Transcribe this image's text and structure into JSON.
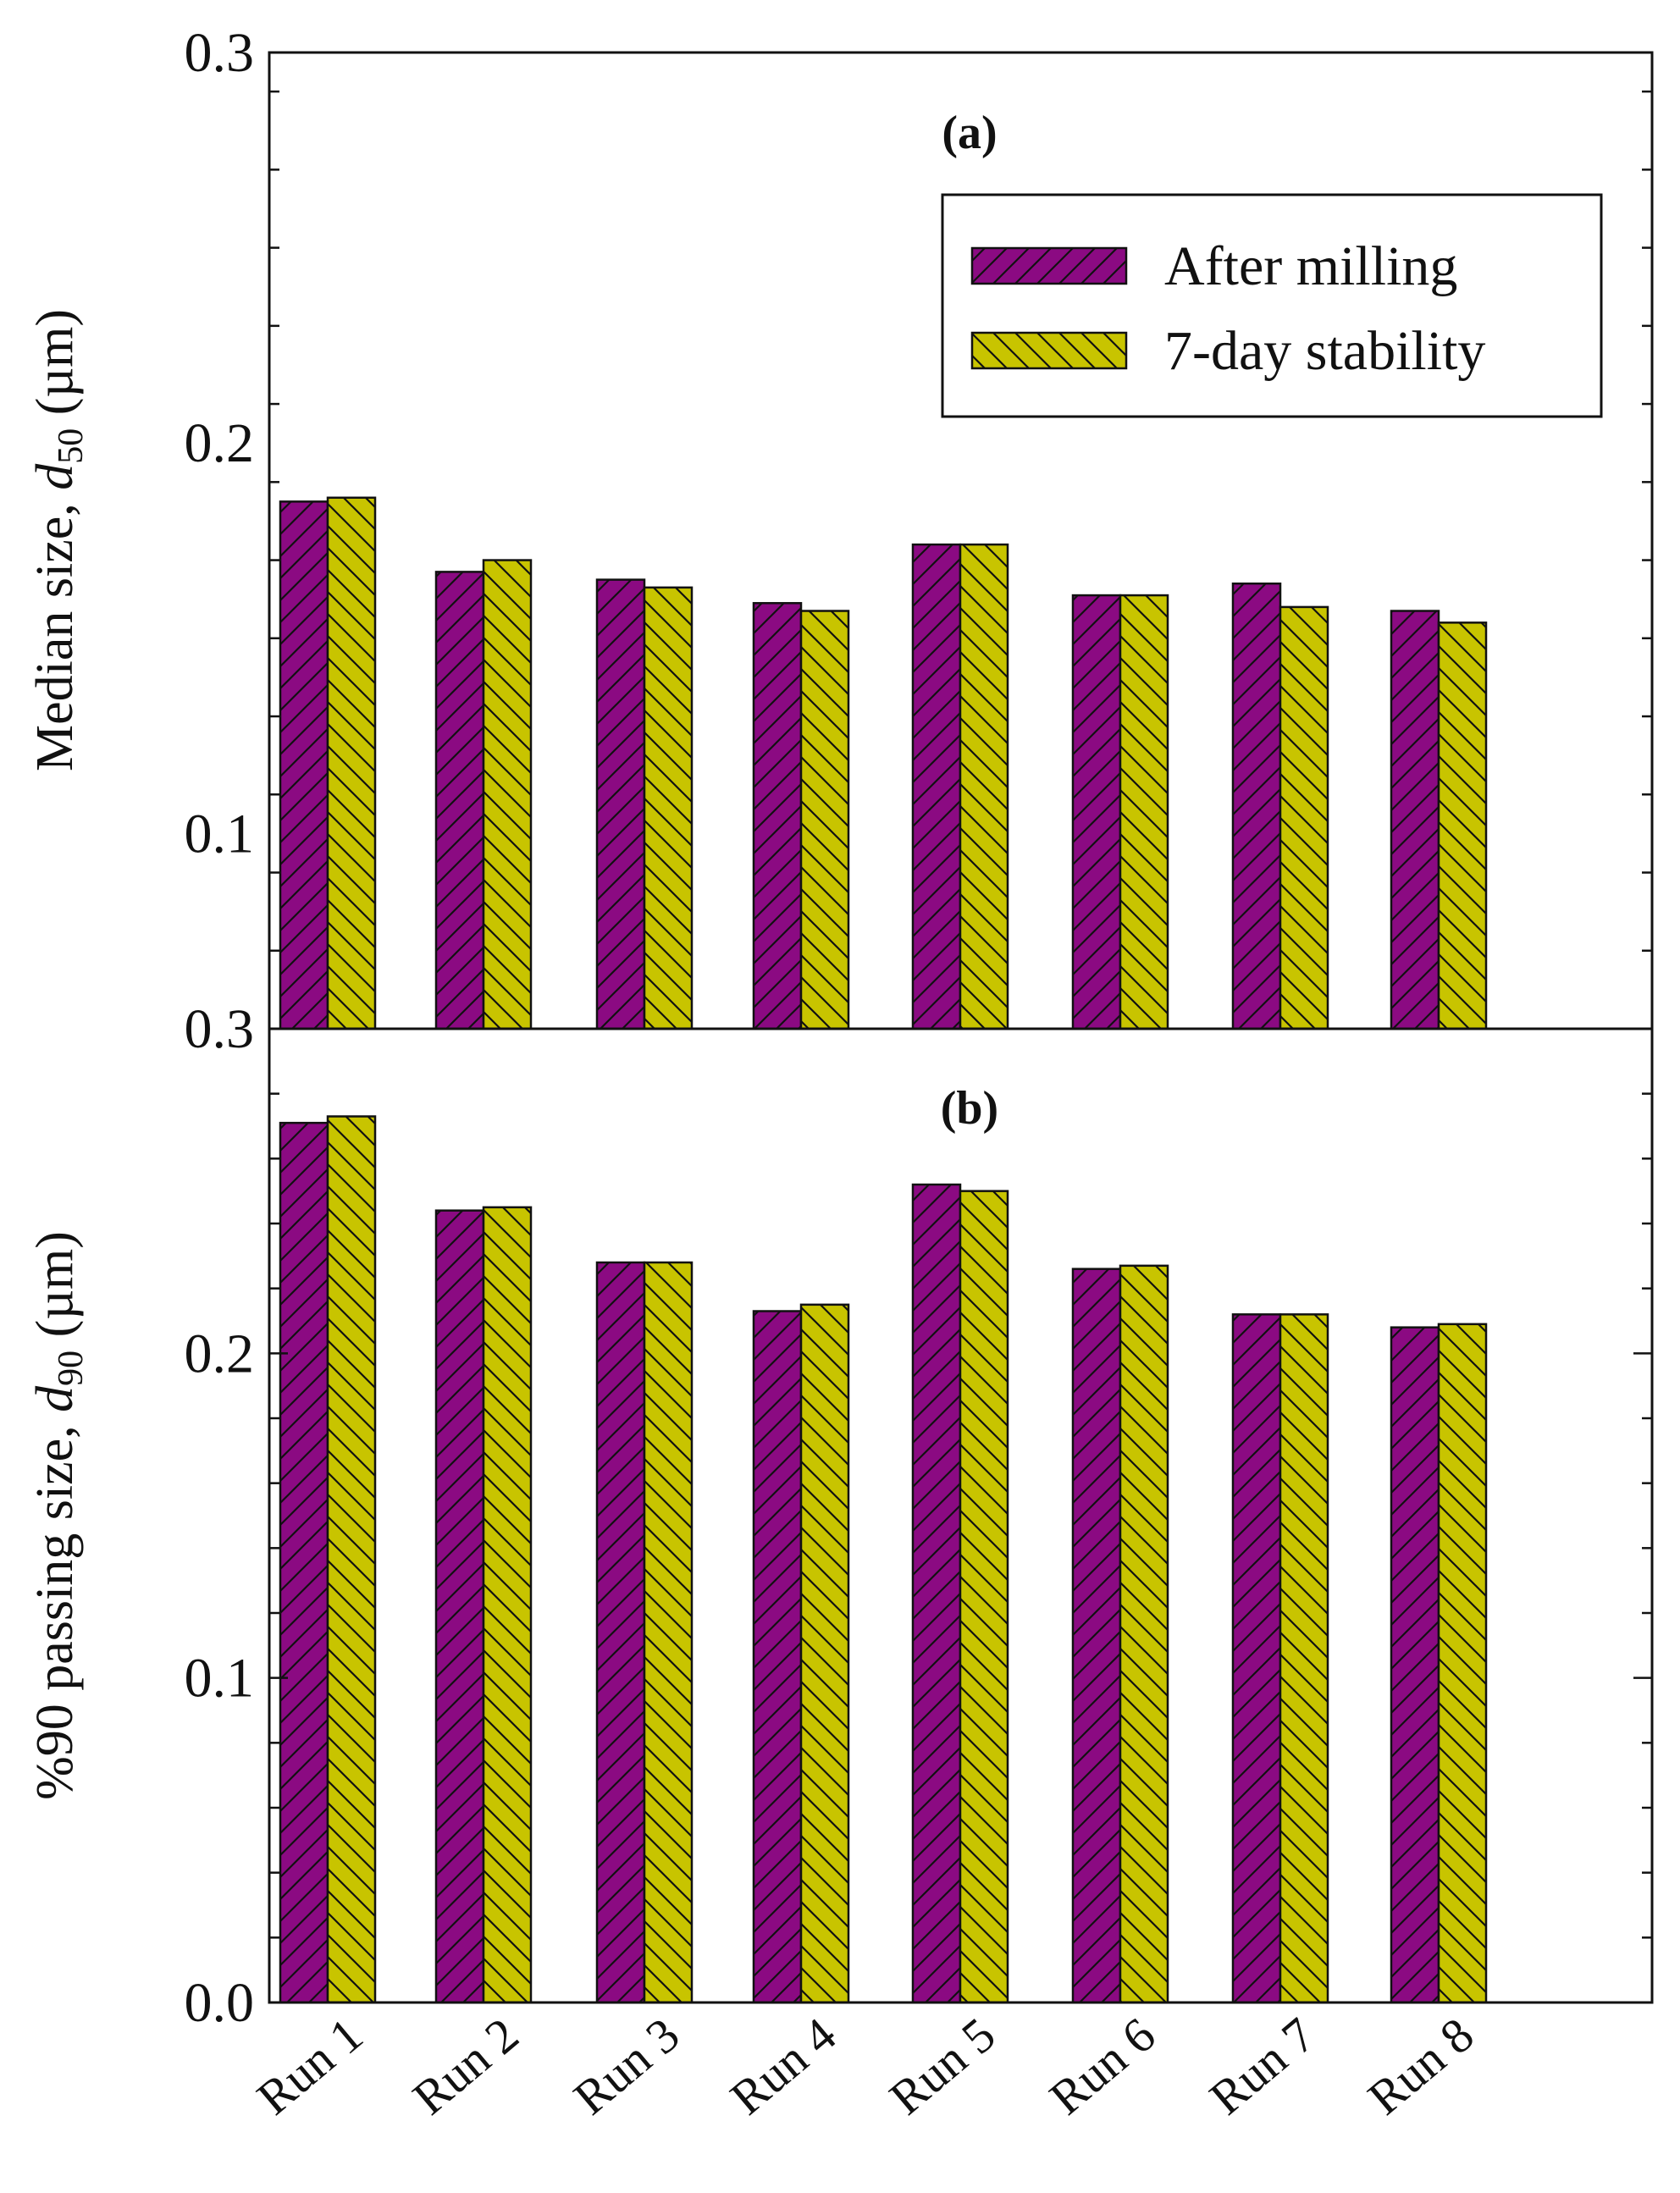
{
  "colors": {
    "after_milling": "#8b0a82",
    "seven_day": "#c8c400",
    "axis": "#111111"
  },
  "legend": {
    "after_milling": "After milling",
    "seven_day": "7-day stability"
  },
  "chart_data": [
    {
      "type": "bar",
      "panel_label": "(a)",
      "ylabel_main": "Median size, ",
      "ylabel_var": "d",
      "ylabel_sub": "50",
      "ylabel_unit": " (µm)",
      "ylim": [
        0.05,
        0.3
      ],
      "yticks": [
        0.1,
        0.2,
        0.3
      ],
      "ytick_labels": [
        "0.1",
        "0.2",
        "0.3"
      ],
      "categories": [
        "Run 1",
        "Run 2",
        "Run 3",
        "Run 4",
        "Run 5",
        "Run 6",
        "Run 7",
        "Run 8"
      ],
      "series": [
        {
          "name": "After milling",
          "values": [
            0.185,
            0.167,
            0.165,
            0.159,
            0.174,
            0.161,
            0.164,
            0.157
          ]
        },
        {
          "name": "7-day stability",
          "values": [
            0.186,
            0.17,
            0.163,
            0.157,
            0.174,
            0.161,
            0.158,
            0.154
          ]
        }
      ],
      "legend_position": "top-right"
    },
    {
      "type": "bar",
      "panel_label": "(b)",
      "ylabel_main": "%90 passing size, ",
      "ylabel_var": "d",
      "ylabel_sub": "90",
      "ylabel_unit": " (µm)",
      "ylim": [
        0.0,
        0.3
      ],
      "yticks": [
        0.0,
        0.1,
        0.2,
        0.3
      ],
      "ytick_labels": [
        "0.0",
        "0.1",
        "0.2",
        "0.3"
      ],
      "categories": [
        "Run 1",
        "Run 2",
        "Run 3",
        "Run 4",
        "Run 5",
        "Run 6",
        "Run 7",
        "Run 8"
      ],
      "series": [
        {
          "name": "After milling",
          "values": [
            0.271,
            0.244,
            0.228,
            0.213,
            0.252,
            0.226,
            0.212,
            0.208
          ]
        },
        {
          "name": "7-day stability",
          "values": [
            0.273,
            0.245,
            0.228,
            0.215,
            0.25,
            0.227,
            0.212,
            0.209
          ]
        }
      ]
    }
  ]
}
